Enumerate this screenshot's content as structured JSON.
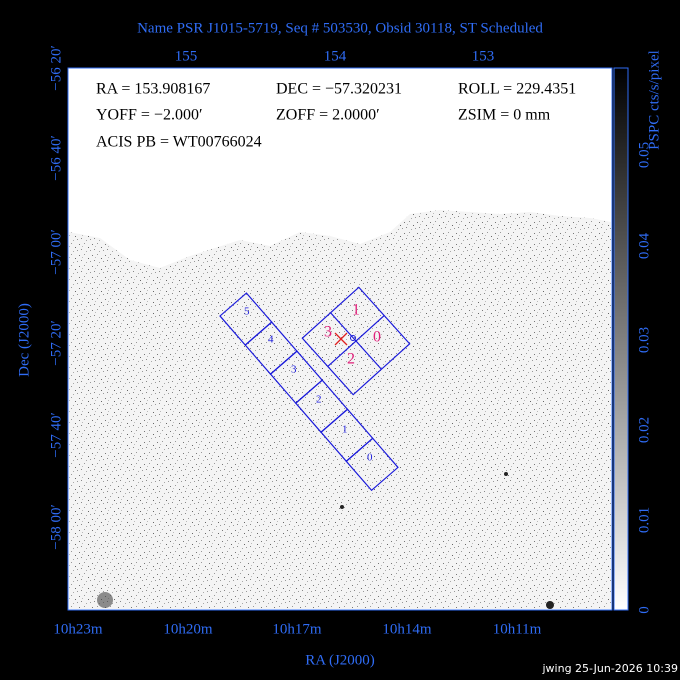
{
  "title": "Name PSR J1015-5719, Seq # 503530, Obsid 30118, ST Scheduled",
  "info": {
    "lines": [
      [
        "RA = 153.908167",
        "DEC = −57.320231",
        "ROLL = 229.4351"
      ],
      [
        "YOFF = −2.000′",
        "ZOFF = 2.0000′",
        "ZSIM = 0 mm"
      ],
      [
        "ACIS PB = WT00766024"
      ]
    ]
  },
  "axes": {
    "top_ticks": [
      "155",
      "154",
      "153"
    ],
    "left_ticks": [
      "−56 20′",
      "−56 40′",
      "−57 00′",
      "−57 20′",
      "−57 40′",
      "−58 00′"
    ],
    "bottom_ticks": [
      "10h23m",
      "10h20m",
      "10h17m",
      "10h14m",
      "10h11m"
    ],
    "x_label": "RA (J2000)",
    "y_label": "Dec (J2000)"
  },
  "colorbar": {
    "title": "PSPC cts/s/pixel",
    "ticks": [
      "0",
      "0.01",
      "0.02",
      "0.03",
      "0.04",
      "0.05"
    ]
  },
  "acis_s": {
    "labels": [
      "5",
      "4",
      "3",
      "2",
      "1",
      "0"
    ]
  },
  "acis_i": {
    "labels": [
      "1",
      "0",
      "2",
      "3"
    ]
  },
  "footer": "jwing 25-Jun-2026 10:39"
}
